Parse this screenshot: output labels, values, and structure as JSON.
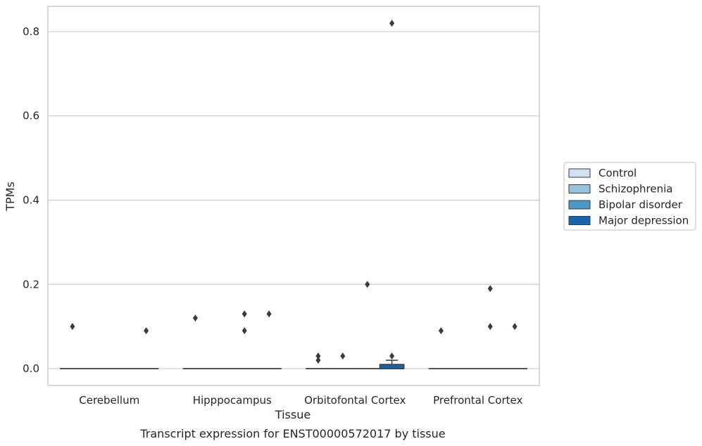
{
  "chart_data": {
    "type": "box",
    "caption": "Transcript expression for ENST00000572017 by tissue",
    "xlabel": "Tissue",
    "ylabel": "TPMs",
    "categories": [
      "Cerebellum",
      "Hipppocampus",
      "Orbitofontal Cortex",
      "Prefrontal Cortex"
    ],
    "ylim": [
      -0.04,
      0.86
    ],
    "yticks": [
      0.0,
      0.2,
      0.4,
      0.6,
      0.8
    ],
    "ytick_labels": [
      "0.0",
      "0.2",
      "0.4",
      "0.6",
      "0.8"
    ],
    "grid": "horizontal",
    "legend_position": "right",
    "series": [
      {
        "name": "Control",
        "color": "#d0e1f2",
        "boxes": [
          {
            "q1": 0,
            "median": 0,
            "q3": 0,
            "whisker_low": 0,
            "whisker_high": 0,
            "outliers": [
              0.1
            ]
          },
          {
            "q1": 0,
            "median": 0,
            "q3": 0,
            "whisker_low": 0,
            "whisker_high": 0,
            "outliers": [
              0.12
            ]
          },
          {
            "q1": 0,
            "median": 0,
            "q3": 0,
            "whisker_low": 0,
            "whisker_high": 0,
            "outliers": [
              0.02,
              0.03
            ]
          },
          {
            "q1": 0,
            "median": 0,
            "q3": 0,
            "whisker_low": 0,
            "whisker_high": 0,
            "outliers": [
              0.09
            ]
          }
        ]
      },
      {
        "name": "Schizophrenia",
        "color": "#94c4df",
        "boxes": [
          {
            "q1": 0,
            "median": 0,
            "q3": 0,
            "whisker_low": 0,
            "whisker_high": 0,
            "outliers": []
          },
          {
            "q1": 0,
            "median": 0,
            "q3": 0,
            "whisker_low": 0,
            "whisker_high": 0,
            "outliers": []
          },
          {
            "q1": 0,
            "median": 0,
            "q3": 0,
            "whisker_low": 0,
            "whisker_high": 0,
            "outliers": [
              0.03
            ]
          },
          {
            "q1": 0,
            "median": 0,
            "q3": 0,
            "whisker_low": 0,
            "whisker_high": 0,
            "outliers": []
          }
        ]
      },
      {
        "name": "Bipolar disorder",
        "color": "#4a98c9",
        "boxes": [
          {
            "q1": 0,
            "median": 0,
            "q3": 0,
            "whisker_low": 0,
            "whisker_high": 0,
            "outliers": []
          },
          {
            "q1": 0,
            "median": 0,
            "q3": 0,
            "whisker_low": 0,
            "whisker_high": 0,
            "outliers": [
              0.09,
              0.13
            ]
          },
          {
            "q1": 0,
            "median": 0,
            "q3": 0,
            "whisker_low": 0,
            "whisker_high": 0,
            "outliers": [
              0.2
            ]
          },
          {
            "q1": 0,
            "median": 0,
            "q3": 0,
            "whisker_low": 0,
            "whisker_high": 0,
            "outliers": [
              0.1,
              0.19
            ]
          }
        ]
      },
      {
        "name": "Major depression",
        "color": "#1764ab",
        "boxes": [
          {
            "q1": 0,
            "median": 0,
            "q3": 0,
            "whisker_low": 0,
            "whisker_high": 0,
            "outliers": [
              0.09
            ]
          },
          {
            "q1": 0,
            "median": 0,
            "q3": 0,
            "whisker_low": 0,
            "whisker_high": 0,
            "outliers": [
              0.13
            ]
          },
          {
            "q1": 0,
            "median": 0,
            "q3": 0.01,
            "whisker_low": 0,
            "whisker_high": 0.02,
            "outliers": [
              0.03,
              0.82
            ]
          },
          {
            "q1": 0,
            "median": 0,
            "q3": 0,
            "whisker_low": 0,
            "whisker_high": 0,
            "outliers": [
              0.1
            ]
          }
        ]
      }
    ],
    "colors": {
      "grid": "#cccccc",
      "frame": "#cccccc",
      "box_edge": "#3b3b3b",
      "outlier": "#3b3b3b",
      "text": "#262626"
    }
  }
}
